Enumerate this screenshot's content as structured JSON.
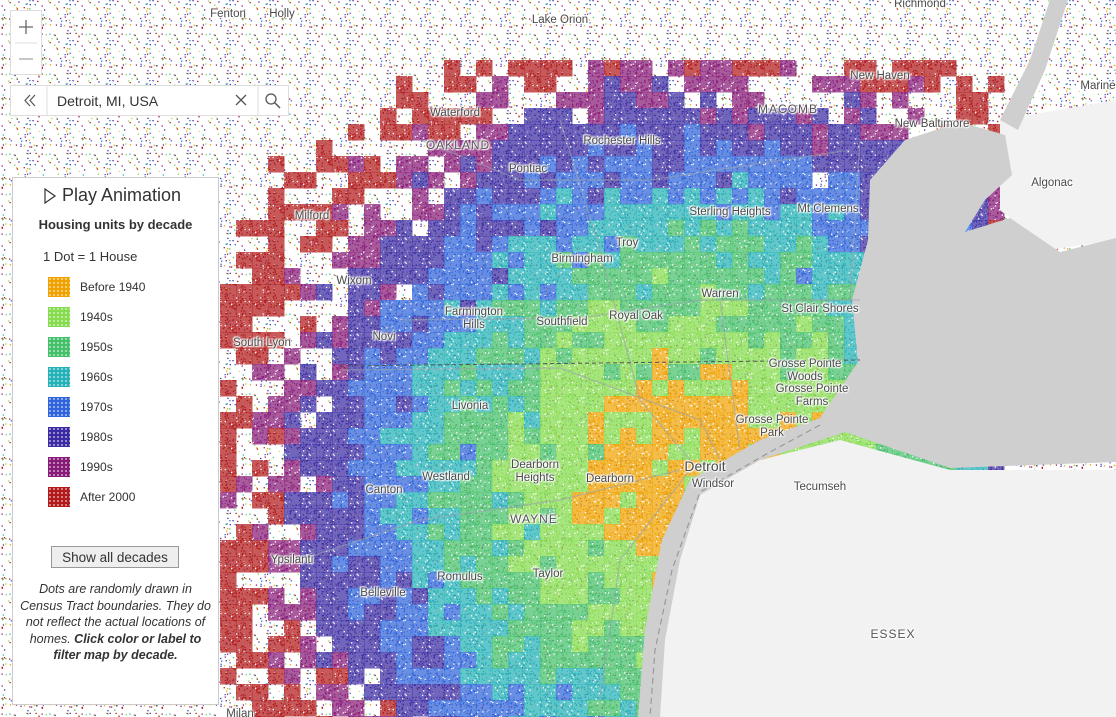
{
  "search": {
    "query": "Detroit, MI, USA"
  },
  "legend": {
    "play": "Play Animation",
    "title": "Housing units by decade",
    "scale": "1 Dot = 1 House",
    "items": [
      {
        "label": "Before 1940",
        "color": "#f0a202"
      },
      {
        "label": "1940s",
        "color": "#86dc4e"
      },
      {
        "label": "1950s",
        "color": "#45c06a"
      },
      {
        "label": "1960s",
        "color": "#24b2b8"
      },
      {
        "label": "1970s",
        "color": "#2f64dc"
      },
      {
        "label": "1980s",
        "color": "#3b2ba3"
      },
      {
        "label": "1990s",
        "color": "#881a78"
      },
      {
        "label": "After 2000",
        "color": "#b2191b"
      }
    ],
    "button": "Show all decades",
    "note": "Dots are randomly drawn in Census Tract boundaries. They do not reflect the actual locations of homes.",
    "note_bold": "Click color or label to filter map by decade."
  },
  "map_labels": [
    "Fenton",
    "Holly",
    "Lake Orion",
    "Richmond",
    "New Haven",
    "Marine",
    "Waterford",
    "OAKLAND",
    "MACOMB",
    "New Baltimore",
    "Rochester Hills",
    "Pontiac",
    "Algonac",
    "Milford",
    "Sterling Heights",
    "Mt Clemens",
    "Troy",
    "Birmingham",
    "Wixom",
    "Warren",
    "St Clair Shores",
    "Farmington Hills",
    "Southfield",
    "Royal Oak",
    "Novi",
    "South Lyon",
    "Grosse Pointe Woods",
    "Grosse Pointe Farms",
    "Grosse Pointe Park",
    "Livonia",
    "Westland",
    "Dearborn Heights",
    "Dearborn",
    "Detroit",
    "Windsor",
    "Tecumseh",
    "Canton",
    "WAYNE",
    "Ypsilanti",
    "Romulus",
    "Taylor",
    "Belleville",
    "ESSEX",
    "Milan"
  ]
}
